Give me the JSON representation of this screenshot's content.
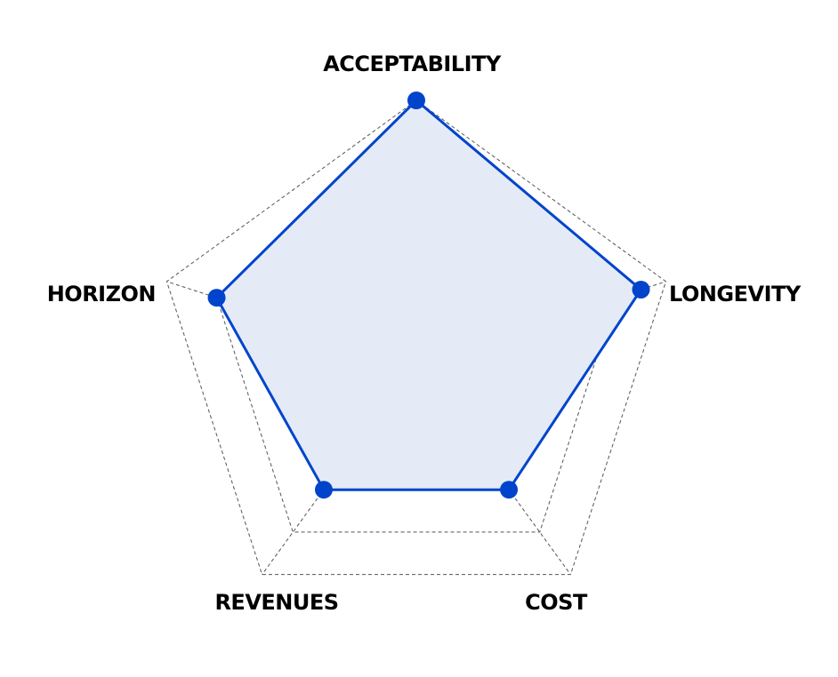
{
  "chart_data": {
    "type": "radar",
    "axes": [
      "ACCEPTABILITY",
      "LONGEVITY",
      "COST",
      "REVENUES",
      "HORIZON"
    ],
    "rlim": [
      0,
      5
    ],
    "ring_count": 5,
    "grid": true,
    "grid_style": "dashed",
    "series": [
      {
        "values": [
          5,
          4.5,
          3,
          3,
          4
        ],
        "color": "#0044cc",
        "fill": "#e4ebf7"
      }
    ]
  }
}
